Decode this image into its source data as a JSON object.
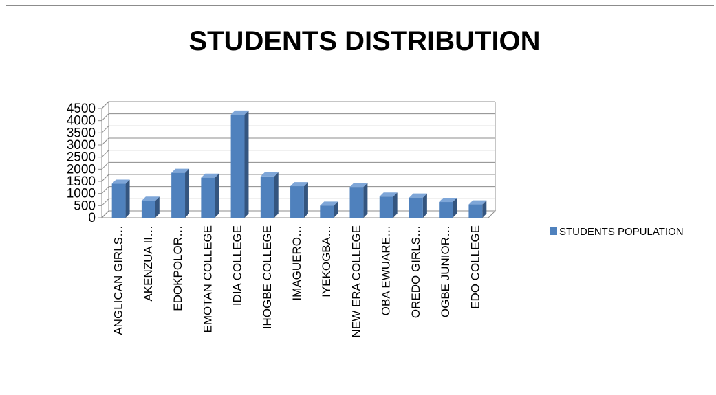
{
  "chart_data": {
    "type": "bar",
    "title": "STUDENTS DISTRIBUTION",
    "xlabel": "",
    "ylabel": "",
    "ylim": [
      0,
      4500
    ],
    "yticks": [
      0,
      500,
      1000,
      1500,
      2000,
      2500,
      3000,
      3500,
      4000,
      4500
    ],
    "grid": true,
    "legend_position": "right",
    "categories": [
      "ANGLICAN GIRLS…",
      "AKENZUA II…",
      "EDOKPOLOR…",
      "EMOTAN COLLEGE",
      "IDIA COLLEGE",
      "IHOGBE COLLEGE",
      "IMAGUERO…",
      "IYEKOGBA…",
      "NEW ERA COLLEGE",
      "OBA EWUARE…",
      "OREDO GIRLS…",
      "OGBE JUNIOR…",
      "EDO COLLEGE"
    ],
    "series": [
      {
        "name": "STUDENTS POPULATION",
        "color": "#4f81bd",
        "values": [
          1400,
          700,
          1850,
          1650,
          4250,
          1700,
          1300,
          500,
          1270,
          870,
          830,
          650,
          550
        ]
      }
    ]
  }
}
